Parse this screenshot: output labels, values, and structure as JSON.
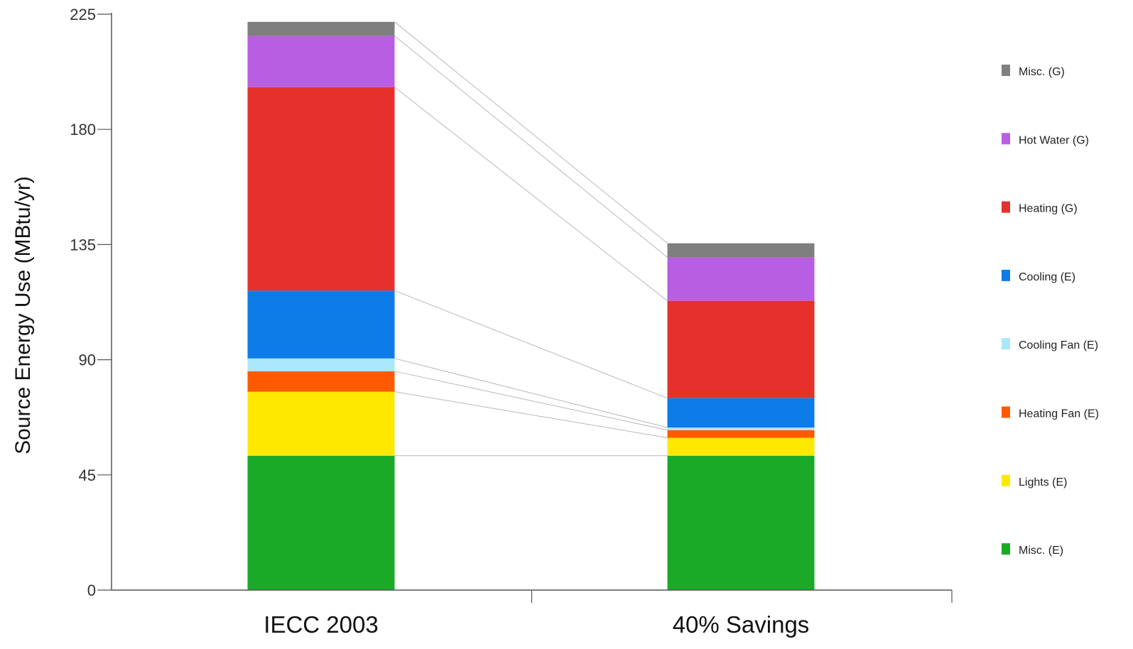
{
  "chart_data": {
    "type": "bar",
    "stacked": true,
    "ylabel": "Source Energy Use (MBtu/yr)",
    "xlabel": "",
    "ylim": [
      0,
      225
    ],
    "yticks": [
      0,
      45,
      90,
      135,
      180,
      225
    ],
    "categories": [
      "IECC 2003",
      "40% Savings"
    ],
    "series": [
      {
        "name": "Misc. (E)",
        "color": "#1aaa28",
        "values": [
          52.5,
          52.5
        ]
      },
      {
        "name": "Lights (E)",
        "color": "#ffe800",
        "values": [
          25.0,
          7.0
        ]
      },
      {
        "name": "Heating Fan (E)",
        "color": "#ff5a00",
        "values": [
          8.0,
          3.0
        ]
      },
      {
        "name": "Cooling Fan (E)",
        "color": "#a8e8fa",
        "values": [
          5.0,
          1.0
        ]
      },
      {
        "name": "Cooling (E)",
        "color": "#0d7ce9",
        "values": [
          26.5,
          11.5
        ]
      },
      {
        "name": "Heating (G)",
        "color": "#e6302b",
        "values": [
          79.5,
          38.0
        ]
      },
      {
        "name": "Hot Water (G)",
        "color": "#b85ee2",
        "values": [
          20.0,
          17.0
        ]
      },
      {
        "name": "Misc. (G)",
        "color": "#7f7f7f",
        "values": [
          5.5,
          5.5
        ]
      }
    ],
    "legend_position": "right",
    "legend_order": [
      "Misc. (G)",
      "Hot Water (G)",
      "Heating (G)",
      "Cooling (E)",
      "Cooling Fan (E)",
      "Heating Fan (E)",
      "Lights (E)",
      "Misc. (E)"
    ],
    "connector_lines": true,
    "grid": false
  }
}
